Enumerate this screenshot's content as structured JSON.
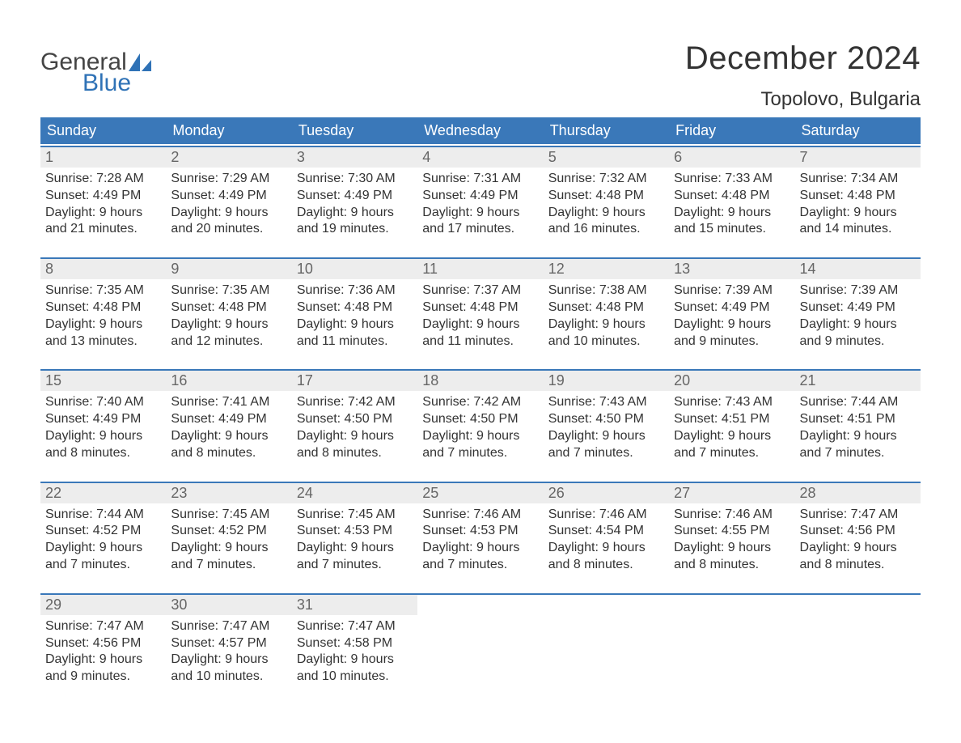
{
  "logo": {
    "word1": "General",
    "word2": "Blue",
    "accent_color": "#2f72b6"
  },
  "title": "December 2024",
  "location": "Topolovo, Bulgaria",
  "colors": {
    "header_bg": "#3a78b9",
    "header_text": "#ffffff",
    "daynum_bg": "#ededed",
    "daynum_text": "#666666",
    "body_text": "#333333",
    "rule": "#3a78b9"
  },
  "day_names": [
    "Sunday",
    "Monday",
    "Tuesday",
    "Wednesday",
    "Thursday",
    "Friday",
    "Saturday"
  ],
  "weeks": [
    [
      {
        "n": 1,
        "sunrise": "7:28 AM",
        "sunset": "4:49 PM",
        "day_h": 9,
        "day_m": 21
      },
      {
        "n": 2,
        "sunrise": "7:29 AM",
        "sunset": "4:49 PM",
        "day_h": 9,
        "day_m": 20
      },
      {
        "n": 3,
        "sunrise": "7:30 AM",
        "sunset": "4:49 PM",
        "day_h": 9,
        "day_m": 19
      },
      {
        "n": 4,
        "sunrise": "7:31 AM",
        "sunset": "4:49 PM",
        "day_h": 9,
        "day_m": 17
      },
      {
        "n": 5,
        "sunrise": "7:32 AM",
        "sunset": "4:48 PM",
        "day_h": 9,
        "day_m": 16
      },
      {
        "n": 6,
        "sunrise": "7:33 AM",
        "sunset": "4:48 PM",
        "day_h": 9,
        "day_m": 15
      },
      {
        "n": 7,
        "sunrise": "7:34 AM",
        "sunset": "4:48 PM",
        "day_h": 9,
        "day_m": 14
      }
    ],
    [
      {
        "n": 8,
        "sunrise": "7:35 AM",
        "sunset": "4:48 PM",
        "day_h": 9,
        "day_m": 13
      },
      {
        "n": 9,
        "sunrise": "7:35 AM",
        "sunset": "4:48 PM",
        "day_h": 9,
        "day_m": 12
      },
      {
        "n": 10,
        "sunrise": "7:36 AM",
        "sunset": "4:48 PM",
        "day_h": 9,
        "day_m": 11
      },
      {
        "n": 11,
        "sunrise": "7:37 AM",
        "sunset": "4:48 PM",
        "day_h": 9,
        "day_m": 11
      },
      {
        "n": 12,
        "sunrise": "7:38 AM",
        "sunset": "4:48 PM",
        "day_h": 9,
        "day_m": 10
      },
      {
        "n": 13,
        "sunrise": "7:39 AM",
        "sunset": "4:49 PM",
        "day_h": 9,
        "day_m": 9
      },
      {
        "n": 14,
        "sunrise": "7:39 AM",
        "sunset": "4:49 PM",
        "day_h": 9,
        "day_m": 9
      }
    ],
    [
      {
        "n": 15,
        "sunrise": "7:40 AM",
        "sunset": "4:49 PM",
        "day_h": 9,
        "day_m": 8
      },
      {
        "n": 16,
        "sunrise": "7:41 AM",
        "sunset": "4:49 PM",
        "day_h": 9,
        "day_m": 8
      },
      {
        "n": 17,
        "sunrise": "7:42 AM",
        "sunset": "4:50 PM",
        "day_h": 9,
        "day_m": 8
      },
      {
        "n": 18,
        "sunrise": "7:42 AM",
        "sunset": "4:50 PM",
        "day_h": 9,
        "day_m": 7
      },
      {
        "n": 19,
        "sunrise": "7:43 AM",
        "sunset": "4:50 PM",
        "day_h": 9,
        "day_m": 7
      },
      {
        "n": 20,
        "sunrise": "7:43 AM",
        "sunset": "4:51 PM",
        "day_h": 9,
        "day_m": 7
      },
      {
        "n": 21,
        "sunrise": "7:44 AM",
        "sunset": "4:51 PM",
        "day_h": 9,
        "day_m": 7
      }
    ],
    [
      {
        "n": 22,
        "sunrise": "7:44 AM",
        "sunset": "4:52 PM",
        "day_h": 9,
        "day_m": 7
      },
      {
        "n": 23,
        "sunrise": "7:45 AM",
        "sunset": "4:52 PM",
        "day_h": 9,
        "day_m": 7
      },
      {
        "n": 24,
        "sunrise": "7:45 AM",
        "sunset": "4:53 PM",
        "day_h": 9,
        "day_m": 7
      },
      {
        "n": 25,
        "sunrise": "7:46 AM",
        "sunset": "4:53 PM",
        "day_h": 9,
        "day_m": 7
      },
      {
        "n": 26,
        "sunrise": "7:46 AM",
        "sunset": "4:54 PM",
        "day_h": 9,
        "day_m": 8
      },
      {
        "n": 27,
        "sunrise": "7:46 AM",
        "sunset": "4:55 PM",
        "day_h": 9,
        "day_m": 8
      },
      {
        "n": 28,
        "sunrise": "7:47 AM",
        "sunset": "4:56 PM",
        "day_h": 9,
        "day_m": 8
      }
    ],
    [
      {
        "n": 29,
        "sunrise": "7:47 AM",
        "sunset": "4:56 PM",
        "day_h": 9,
        "day_m": 9
      },
      {
        "n": 30,
        "sunrise": "7:47 AM",
        "sunset": "4:57 PM",
        "day_h": 9,
        "day_m": 10
      },
      {
        "n": 31,
        "sunrise": "7:47 AM",
        "sunset": "4:58 PM",
        "day_h": 9,
        "day_m": 10
      },
      null,
      null,
      null,
      null
    ]
  ],
  "labels": {
    "sunrise": "Sunrise:",
    "sunset": "Sunset:",
    "daylight": "Daylight:",
    "hours": "hours",
    "and": "and",
    "minutes": "minutes."
  }
}
